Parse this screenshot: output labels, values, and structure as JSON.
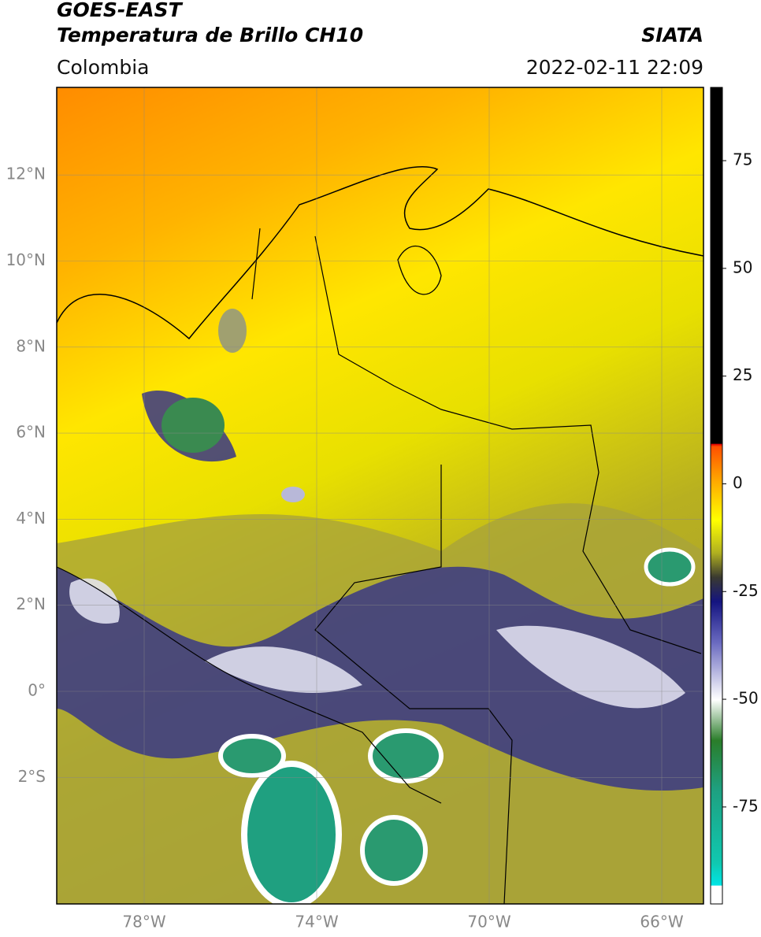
{
  "header": {
    "title_line1": "GOES-EAST",
    "title_line2": "Temperatura de Brillo CH10",
    "source": "SIATA",
    "region": "Colombia",
    "datetime": "2022-02-11 22:09"
  },
  "map": {
    "lat_ticks": [
      {
        "value": 12,
        "label": "12°N"
      },
      {
        "value": 10,
        "label": "10°N"
      },
      {
        "value": 8,
        "label": "8°N"
      },
      {
        "value": 6,
        "label": "6°N"
      },
      {
        "value": 4,
        "label": "4°N"
      },
      {
        "value": 2,
        "label": "2°N"
      },
      {
        "value": 0,
        "label": "0°"
      },
      {
        "value": -2,
        "label": "2°S"
      }
    ],
    "lon_ticks": [
      {
        "value": -78,
        "label": "78°W"
      },
      {
        "value": -74,
        "label": "74°W"
      },
      {
        "value": -70,
        "label": "70°W"
      },
      {
        "value": -66,
        "label": "66°W"
      }
    ]
  },
  "colorbar": {
    "lim": [
      -97.5,
      92
    ],
    "ticks": [
      75,
      50,
      25,
      0,
      -25,
      -50,
      -75
    ]
  }
}
